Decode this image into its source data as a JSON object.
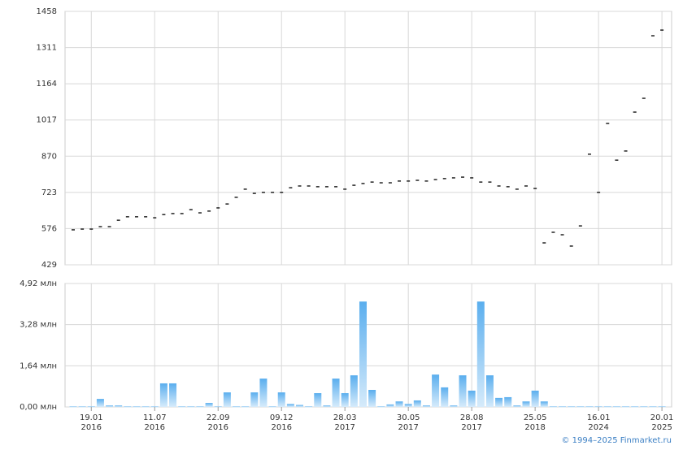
{
  "chart_data": [
    {
      "type": "dash",
      "ylim": [
        429,
        1458
      ],
      "yticks": [
        429,
        576,
        723,
        870,
        1017,
        1164,
        1311,
        1458
      ],
      "grid": true,
      "color": "#000000",
      "values": [
        571,
        574,
        574,
        584,
        584,
        610,
        624,
        624,
        624,
        620,
        633,
        637,
        637,
        653,
        640,
        647,
        660,
        676,
        703,
        736,
        719,
        723,
        723,
        723,
        742,
        749,
        749,
        746,
        746,
        746,
        736,
        752,
        759,
        765,
        762,
        762,
        769,
        769,
        772,
        769,
        775,
        779,
        782,
        785,
        782,
        765,
        765,
        749,
        746,
        736,
        749,
        739,
        518,
        561,
        551,
        505,
        587,
        878,
        723,
        1003,
        854,
        891,
        1049,
        1105,
        1359,
        1382
      ]
    },
    {
      "type": "bar",
      "ylim": [
        0,
        4.92
      ],
      "yticks": [
        {
          "value": 0,
          "label": "0,00 млн"
        },
        {
          "value": 1.64,
          "label": "1,64 млн"
        },
        {
          "value": 3.28,
          "label": "3,28 млн"
        },
        {
          "value": 4.92,
          "label": "4,92 млн"
        }
      ],
      "grid": true,
      "color": "#7cbcf0",
      "categories": [
        null,
        null,
        "19.01",
        null,
        null,
        null,
        null,
        null,
        null,
        "11.07",
        null,
        null,
        null,
        null,
        null,
        null,
        "22.09",
        null,
        null,
        null,
        null,
        null,
        null,
        "09.12",
        null,
        null,
        null,
        null,
        null,
        null,
        "28.03",
        null,
        null,
        null,
        null,
        null,
        null,
        "30.05",
        null,
        null,
        null,
        null,
        null,
        null,
        "28.08",
        null,
        null,
        null,
        null,
        null,
        null,
        "25.05",
        null,
        null,
        null,
        null,
        null,
        null,
        "16.01",
        null,
        null,
        null,
        null,
        null,
        null,
        "20.01"
      ],
      "category_years": [
        null,
        null,
        "2016",
        null,
        null,
        null,
        null,
        null,
        null,
        "2016",
        null,
        null,
        null,
        null,
        null,
        null,
        "2016",
        null,
        null,
        null,
        null,
        null,
        null,
        "2016",
        null,
        null,
        null,
        null,
        null,
        null,
        "2017",
        null,
        null,
        null,
        null,
        null,
        null,
        "2017",
        null,
        null,
        null,
        null,
        null,
        null,
        "2017",
        null,
        null,
        null,
        null,
        null,
        null,
        "2018",
        null,
        null,
        null,
        null,
        null,
        null,
        "2024",
        null,
        null,
        null,
        null,
        null,
        null,
        "2025"
      ],
      "values": [
        0.02,
        0.02,
        0.02,
        0.32,
        0.06,
        0.06,
        0.02,
        0.02,
        0.02,
        0.02,
        0.94,
        0.94,
        0.02,
        0.02,
        0.02,
        0.16,
        0.02,
        0.58,
        0.02,
        0.02,
        0.58,
        1.13,
        0.02,
        0.58,
        0.12,
        0.08,
        0.02,
        0.55,
        0.06,
        1.13,
        0.55,
        1.26,
        4.2,
        0.68,
        0.02,
        0.1,
        0.22,
        0.12,
        0.26,
        0.06,
        1.29,
        0.78,
        0.06,
        1.26,
        0.65,
        4.2,
        1.26,
        0.36,
        0.39,
        0.06,
        0.22,
        0.65,
        0.22,
        0.02,
        0.02,
        0.02,
        0.02,
        0.02,
        0.02,
        0.02,
        0.02,
        0.02,
        0.02,
        0.02,
        0.02,
        0.02
      ]
    }
  ],
  "footer": "© 1994–2025 Finmarket.ru"
}
